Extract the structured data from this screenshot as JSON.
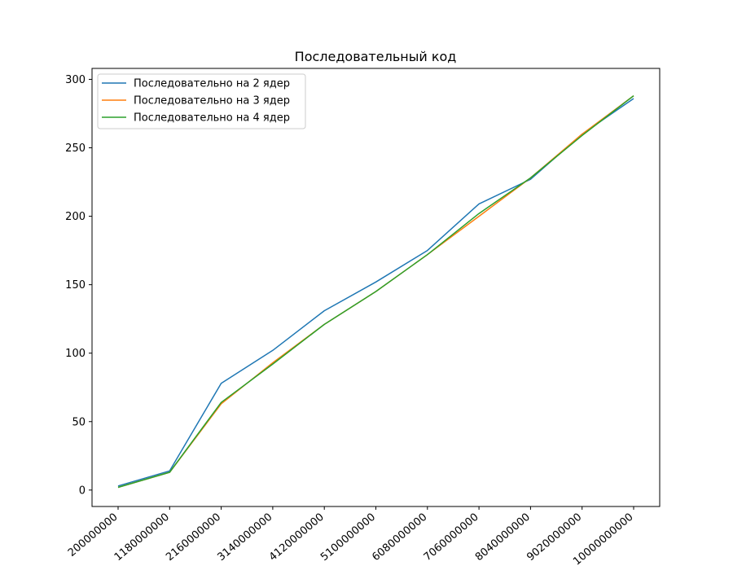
{
  "chart_data": {
    "type": "line",
    "title": "Последовательный код",
    "xlabel": "",
    "ylabel": "",
    "categories": [
      "200000000",
      "1180000000",
      "2160000000",
      "3140000000",
      "4120000000",
      "5100000000",
      "6080000000",
      "7060000000",
      "8040000000",
      "9020000000",
      "10000000000"
    ],
    "ylim": [
      -12,
      308
    ],
    "yticks": [
      0,
      50,
      100,
      150,
      200,
      250,
      300
    ],
    "grid": false,
    "legend_position": "top-left",
    "series": [
      {
        "name": "Последовательно на 2 ядер",
        "color": "#1f77b4",
        "values": [
          3,
          14,
          78,
          102,
          131,
          152,
          175,
          209,
          227,
          260,
          286
        ]
      },
      {
        "name": "Последовательно на 3 ядер",
        "color": "#ff7f0e",
        "values": [
          2,
          13,
          63,
          93,
          121,
          145,
          172,
          200,
          228,
          260,
          288
        ]
      },
      {
        "name": "Последовательно на 4 ядер",
        "color": "#2ca02c",
        "values": [
          2,
          13,
          64,
          92,
          121,
          145,
          172,
          202,
          228,
          259,
          288
        ]
      }
    ]
  }
}
